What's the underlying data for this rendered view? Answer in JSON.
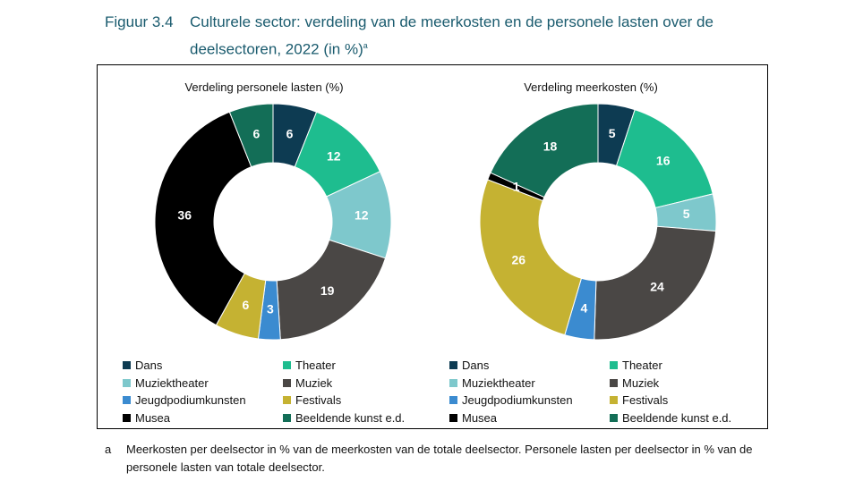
{
  "figure": {
    "number": "Figuur 3.4",
    "title": "Culturele sector: verdeling van de meerkosten en de personele lasten over de deelsectoren, 2022 (in %)",
    "title_sup": "a"
  },
  "colors": {
    "Dans": "#0d3b52",
    "Theater": "#1ebd8f",
    "Muziektheater": "#7ec8cc",
    "Muziek": "#4a4745",
    "Jeugdpodiumkunsten": "#3b8bd0",
    "Festivals": "#c5b232",
    "Musea": "#000000",
    "Beeldende kunst e.d.": "#136e57"
  },
  "chart_data": [
    {
      "type": "pie",
      "title": "Verdeling personele lasten (%)",
      "categories": [
        "Dans",
        "Theater",
        "Muziektheater",
        "Muziek",
        "Jeugdpodiumkunsten",
        "Festivals",
        "Musea",
        "Beeldende kunst e.d."
      ],
      "values": [
        6,
        12,
        12,
        19,
        3,
        6,
        36,
        6
      ],
      "legend": [
        "Dans",
        "Theater",
        "Muziektheater",
        "Muziek",
        "Jeugdpodiumkunsten",
        "Festivals",
        "Musea",
        "Beeldende kunst e.d."
      ]
    },
    {
      "type": "pie",
      "title": "Verdeling meerkosten (%)",
      "categories": [
        "Dans",
        "Theater",
        "Muziektheater",
        "Muziek",
        "Jeugdpodiumkunsten",
        "Festivals",
        "Musea",
        "Beeldende kunst e.d."
      ],
      "values": [
        5,
        16,
        5,
        24,
        4,
        26,
        1,
        18
      ],
      "legend": [
        "Dans",
        "Theater",
        "Muziektheater",
        "Muziek",
        "Jeugdpodiumkunsten",
        "Festivals",
        "Musea",
        "Beeldende kunst e.d."
      ]
    }
  ],
  "footnote": {
    "mark": "a",
    "text": "Meerkosten per deelsector in % van de meerkosten van de totale deelsector. Personele lasten per deelsector in % van de personele lasten van totale deelsector."
  }
}
